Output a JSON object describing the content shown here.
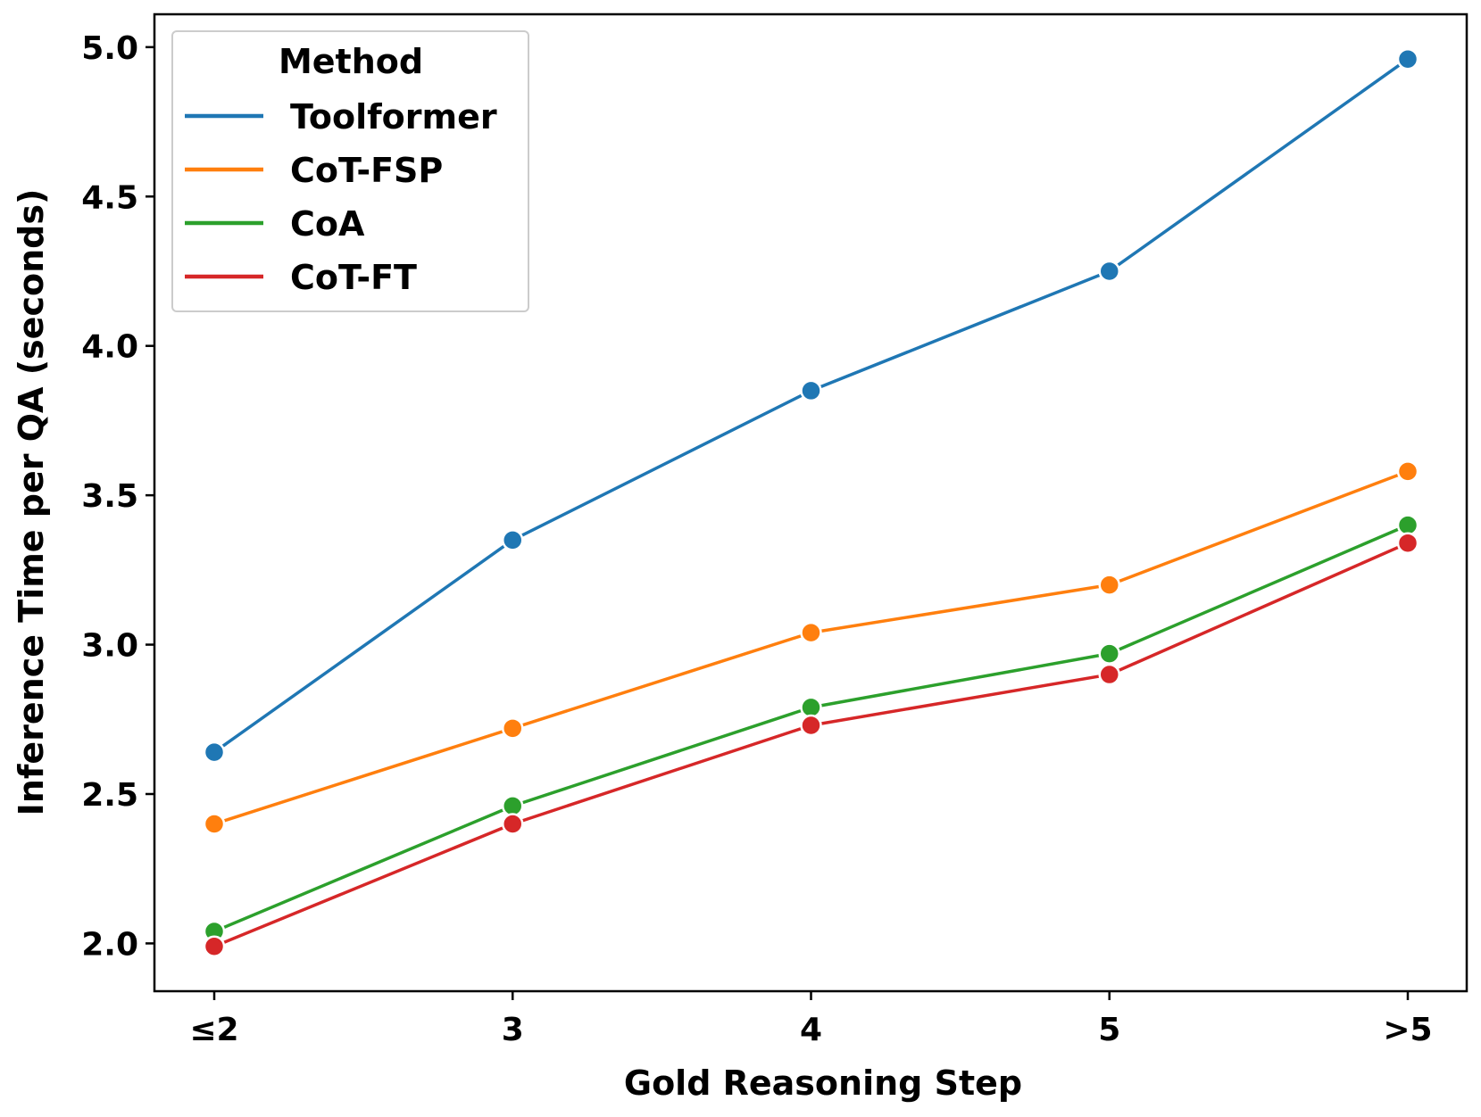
{
  "chart_data": {
    "type": "line",
    "title": "",
    "xlabel": "Gold Reasoning Step",
    "ylabel": "Inference Time per QA (seconds)",
    "categories": [
      "≤2",
      "3",
      "4",
      "5",
      ">5"
    ],
    "ylim": [
      1.84,
      5.11
    ],
    "yticks": [
      2.0,
      2.5,
      3.0,
      3.5,
      4.0,
      4.5,
      5.0
    ],
    "ytick_labels": [
      "2.0",
      "2.5",
      "3.0",
      "3.5",
      "4.0",
      "4.5",
      "5.0"
    ],
    "grid": false,
    "legend": {
      "title": "Method",
      "position": "top-left"
    },
    "series": [
      {
        "name": "Toolformer",
        "color": "#1f77b4",
        "values": [
          2.64,
          3.35,
          3.85,
          4.25,
          4.96
        ]
      },
      {
        "name": "CoT-FSP",
        "color": "#ff7f0e",
        "values": [
          2.4,
          2.72,
          3.04,
          3.2,
          3.58
        ]
      },
      {
        "name": "CoA",
        "color": "#2ca02c",
        "values": [
          2.04,
          2.46,
          2.79,
          2.97,
          3.4
        ]
      },
      {
        "name": "CoT-FT",
        "color": "#d62728",
        "values": [
          1.99,
          2.4,
          2.73,
          2.9,
          3.34
        ]
      }
    ]
  }
}
